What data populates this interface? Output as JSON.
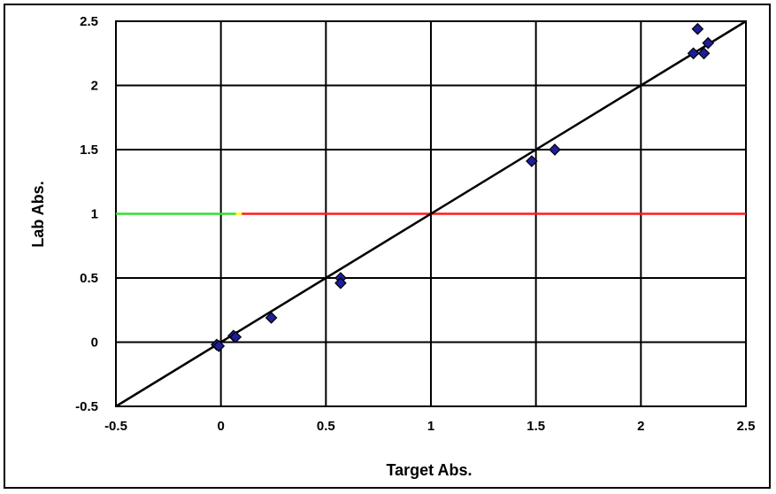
{
  "chart_data": {
    "type": "scatter",
    "title": "",
    "xlabel": "Target Abs.",
    "ylabel": "Lab Abs.",
    "xlim": [
      -0.5,
      2.5
    ],
    "ylim": [
      -0.5,
      2.5
    ],
    "xticks": [
      "-0.5",
      "0",
      "0.5",
      "1",
      "1.5",
      "2",
      "2.5"
    ],
    "yticks": [
      "-0.5",
      "0",
      "0.5",
      "1",
      "1.5",
      "2",
      "2.5"
    ],
    "grid": true,
    "legend": "none",
    "points": [
      {
        "x": -0.02,
        "y": -0.02
      },
      {
        "x": -0.01,
        "y": -0.03
      },
      {
        "x": 0.06,
        "y": 0.05
      },
      {
        "x": 0.07,
        "y": 0.04
      },
      {
        "x": 0.24,
        "y": 0.19
      },
      {
        "x": 0.57,
        "y": 0.5
      },
      {
        "x": 0.57,
        "y": 0.46
      },
      {
        "x": 1.48,
        "y": 1.41
      },
      {
        "x": 1.59,
        "y": 1.5
      },
      {
        "x": 2.25,
        "y": 2.25
      },
      {
        "x": 2.27,
        "y": 2.44
      },
      {
        "x": 2.3,
        "y": 2.25
      },
      {
        "x": 2.32,
        "y": 2.33
      }
    ],
    "identity_line": {
      "from": [
        -0.5,
        -0.5
      ],
      "to": [
        2.5,
        2.5
      ]
    },
    "reference_line": {
      "y": 1,
      "segments": [
        {
          "from": -0.5,
          "to": 0.07,
          "color": "#33dd33"
        },
        {
          "from": 0.07,
          "to": 0.1,
          "color": "#ffff00"
        },
        {
          "from": 0.1,
          "to": 2.5,
          "color": "#ff1a1a"
        }
      ]
    },
    "colors": {
      "marker": "#1e1e9a",
      "marker_edge": "#000000",
      "grid": "#000000"
    }
  }
}
